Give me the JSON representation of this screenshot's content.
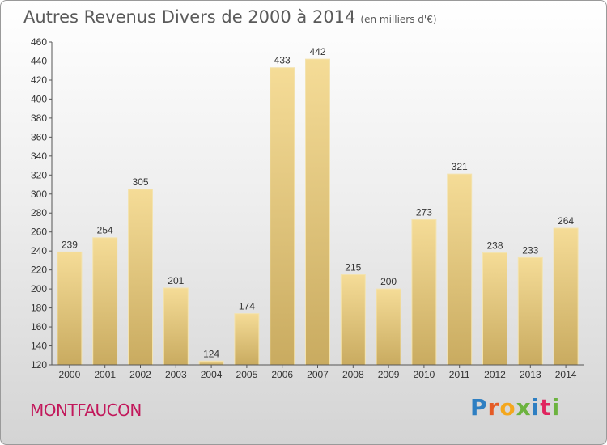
{
  "header": {
    "title": "Autres Revenus Divers de 2000 à 2014",
    "unit": "(en milliers d'€)"
  },
  "footer": {
    "place": "MONTFAUCON",
    "logo": "Proxiti",
    "logo_colors": [
      "#2e7fc2",
      "#e55b26",
      "#f4a71d",
      "#6cb33f",
      "#2e7fc2",
      "#e0245e",
      "#6cb33f"
    ]
  },
  "chart_data": {
    "type": "bar",
    "title": "Autres Revenus Divers de 2000 à 2014",
    "subtitle": "(en milliers d'€)",
    "categories": [
      "2000",
      "2001",
      "2002",
      "2003",
      "2004",
      "2005",
      "2006",
      "2007",
      "2008",
      "2009",
      "2010",
      "2011",
      "2012",
      "2013",
      "2014"
    ],
    "values": [
      239,
      254,
      305,
      201,
      124,
      174,
      433,
      442,
      215,
      200,
      273,
      321,
      238,
      233,
      264
    ],
    "ylim": [
      120,
      460
    ],
    "yticks": [
      120,
      140,
      160,
      180,
      200,
      220,
      240,
      260,
      280,
      300,
      320,
      340,
      360,
      380,
      400,
      420,
      440,
      460
    ],
    "grid": false,
    "bar_color_top": "#f5dc97",
    "bar_color_bottom": "#c9ab60",
    "axis_color": "#555555"
  }
}
